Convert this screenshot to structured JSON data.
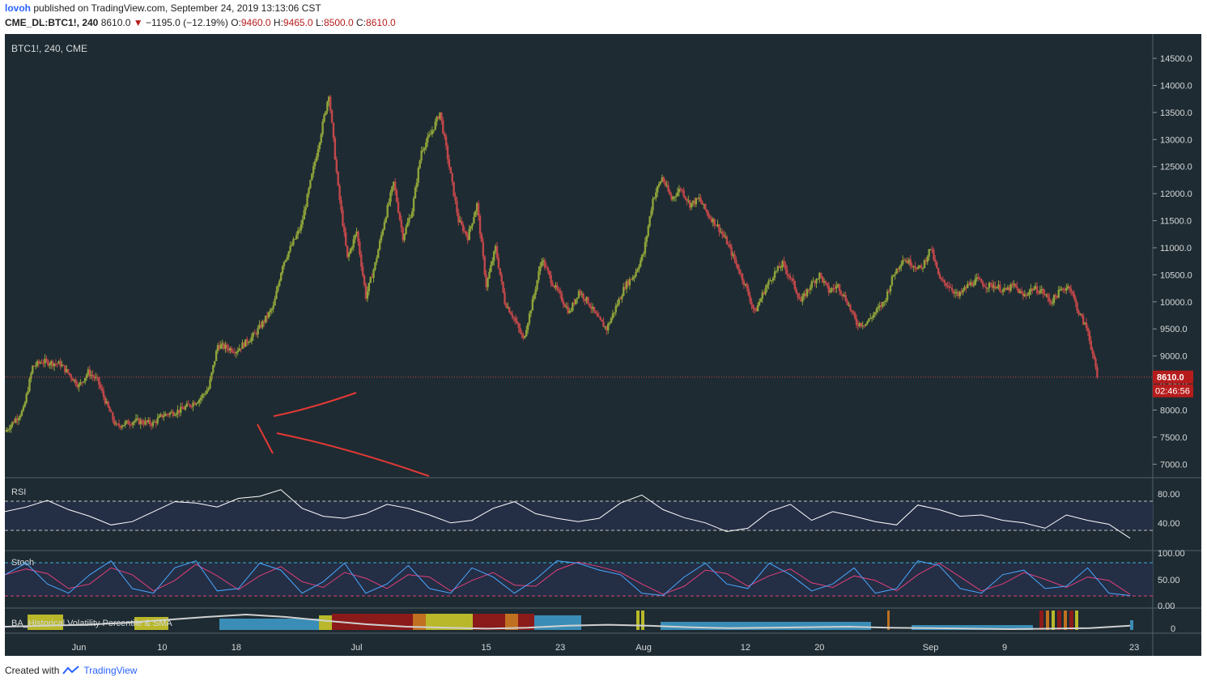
{
  "header": {
    "author": "lovoh",
    "published_text": "published on TradingView.com, September 24, 2019 13:13:06 CST",
    "symbol": "CME_DL:BTC1!, 240",
    "last": "8610.0",
    "change": "−1195.0 (−12.19%)",
    "open_label": "O:",
    "open": "9460.0",
    "high_label": "H:",
    "high": "9465.0",
    "low_label": "L:",
    "low": "8500.0",
    "close_label": "C:",
    "close": "8610.0"
  },
  "footer": {
    "created_with": "Created with",
    "brand": "TradingView"
  },
  "colors": {
    "background": "#1e2b32",
    "up_candle": "#8fa33a",
    "down_candle": "#c0474a",
    "price_tag": "#b71c1c",
    "rsi_line": "#ffffff",
    "stoch_k": "#4aa8ff",
    "stoch_d": "#e0407a",
    "annotation": "#e53935"
  },
  "chart_data": {
    "type": "candlestick",
    "title": "BTC1!, 240, CME",
    "price_axis": [
      "14500.0",
      "14000.0",
      "13500.0",
      "13000.0",
      "12500.0",
      "12000.0",
      "11500.0",
      "11000.0",
      "10500.0",
      "10000.0",
      "9500.0",
      "9000.0",
      "8500.0",
      "8000.0",
      "7500.0",
      "7000.0"
    ],
    "price_range": [
      6750,
      14950
    ],
    "last_price_label": "8610.0",
    "countdown_label": "02:46:56",
    "x_tick_labels": [
      "Jun",
      "10",
      "18",
      "Jul",
      "15",
      "23",
      "Aug",
      "12",
      "20",
      "Sep",
      "9",
      "23"
    ],
    "day_range": [
      -7,
      117
    ],
    "x_ticks_day": [
      1,
      10,
      18,
      31,
      45,
      53,
      62,
      73,
      81,
      93,
      101,
      115
    ],
    "closes_by_day": [
      [
        -7,
        7600
      ],
      [
        -5,
        8000
      ],
      [
        -4,
        8800
      ],
      [
        -3,
        8900
      ],
      [
        -1,
        8850
      ],
      [
        0,
        8650
      ],
      [
        1,
        8450
      ],
      [
        2,
        8700
      ],
      [
        3,
        8550
      ],
      [
        4,
        8100
      ],
      [
        5,
        7700
      ],
      [
        7,
        7800
      ],
      [
        9,
        7750
      ],
      [
        10,
        7900
      ],
      [
        12,
        8000
      ],
      [
        14,
        8200
      ],
      [
        15,
        8400
      ],
      [
        16,
        9200
      ],
      [
        18,
        9100
      ],
      [
        20,
        9400
      ],
      [
        22,
        9900
      ],
      [
        23,
        10700
      ],
      [
        25,
        11400
      ],
      [
        27,
        13000
      ],
      [
        28,
        13850
      ],
      [
        29,
        12100
      ],
      [
        30,
        10800
      ],
      [
        31,
        11300
      ],
      [
        32,
        10100
      ],
      [
        33,
        10700
      ],
      [
        34,
        11500
      ],
      [
        35,
        12200
      ],
      [
        36,
        11200
      ],
      [
        37,
        11700
      ],
      [
        38,
        12800
      ],
      [
        39,
        13100
      ],
      [
        40,
        13500
      ],
      [
        41,
        12500
      ],
      [
        42,
        11500
      ],
      [
        43,
        11200
      ],
      [
        44,
        11800
      ],
      [
        45,
        10300
      ],
      [
        46,
        11000
      ],
      [
        47,
        10000
      ],
      [
        48,
        9700
      ],
      [
        49,
        9300
      ],
      [
        50,
        10000
      ],
      [
        51,
        10800
      ],
      [
        52,
        10400
      ],
      [
        53,
        10100
      ],
      [
        54,
        9800
      ],
      [
        55,
        10200
      ],
      [
        56,
        10000
      ],
      [
        57,
        9700
      ],
      [
        58,
        9500
      ],
      [
        59,
        9900
      ],
      [
        60,
        10300
      ],
      [
        61,
        10500
      ],
      [
        62,
        10900
      ],
      [
        63,
        11900
      ],
      [
        64,
        12300
      ],
      [
        65,
        11900
      ],
      [
        66,
        12100
      ],
      [
        67,
        11800
      ],
      [
        68,
        11900
      ],
      [
        69,
        11600
      ],
      [
        70,
        11400
      ],
      [
        71,
        11100
      ],
      [
        72,
        10700
      ],
      [
        73,
        10300
      ],
      [
        74,
        9800
      ],
      [
        75,
        10200
      ],
      [
        76,
        10500
      ],
      [
        77,
        10700
      ],
      [
        78,
        10400
      ],
      [
        79,
        10000
      ],
      [
        80,
        10300
      ],
      [
        81,
        10500
      ],
      [
        82,
        10200
      ],
      [
        83,
        10300
      ],
      [
        84,
        10000
      ],
      [
        85,
        9600
      ],
      [
        86,
        9600
      ],
      [
        87,
        9800
      ],
      [
        88,
        10000
      ],
      [
        89,
        10500
      ],
      [
        90,
        10800
      ],
      [
        91,
        10700
      ],
      [
        92,
        10600
      ],
      [
        93,
        11000
      ],
      [
        94,
        10400
      ],
      [
        95,
        10300
      ],
      [
        96,
        10100
      ],
      [
        97,
        10300
      ],
      [
        98,
        10400
      ],
      [
        99,
        10300
      ],
      [
        100,
        10300
      ],
      [
        101,
        10200
      ],
      [
        102,
        10300
      ],
      [
        103,
        10100
      ],
      [
        104,
        10250
      ],
      [
        105,
        10200
      ],
      [
        106,
        10000
      ],
      [
        107,
        10200
      ],
      [
        108,
        10300
      ],
      [
        109,
        9800
      ],
      [
        110,
        9460
      ],
      [
        111,
        8610
      ]
    ],
    "series": [
      {
        "name": "RSI",
        "y_axis": [
          "80.00",
          "40.00"
        ],
        "y_range": [
          0,
          100
        ],
        "bands": [
          70,
          30
        ],
        "values": [
          55,
          62,
          72,
          58,
          48,
          35,
          40,
          55,
          70,
          68,
          62,
          75,
          78,
          88,
          60,
          48,
          45,
          52,
          66,
          60,
          50,
          38,
          42,
          60,
          70,
          52,
          45,
          40,
          45,
          68,
          80,
          58,
          46,
          38,
          25,
          30,
          55,
          66,
          42,
          55,
          48,
          40,
          35,
          65,
          58,
          48,
          50,
          42,
          38,
          30,
          50,
          42,
          36,
          15
        ]
      },
      {
        "name": "Stoch",
        "y_axis": [
          "100.00",
          "50.00",
          "0.00"
        ],
        "y_range": [
          0,
          100
        ],
        "bands": [
          80,
          20
        ],
        "values": [
          60,
          85,
          40,
          20,
          60,
          90,
          30,
          20,
          75,
          90,
          25,
          30,
          85,
          70,
          20,
          45,
          85,
          20,
          40,
          80,
          30,
          20,
          75,
          55,
          20,
          50,
          90,
          85,
          70,
          60,
          20,
          15,
          55,
          85,
          40,
          30,
          85,
          60,
          25,
          40,
          75,
          20,
          30,
          90,
          80,
          30,
          20,
          60,
          70,
          30,
          35,
          75,
          20,
          15
        ]
      },
      {
        "name": "BA_Historical Volatility Percentile & SMA",
        "y_axis": [
          "0"
        ],
        "values": [
          10,
          12,
          14,
          18,
          24,
          30,
          35,
          30,
          22,
          15,
          10,
          8,
          6,
          8,
          12,
          14,
          12,
          9,
          7,
          8,
          9,
          10,
          8,
          7,
          6,
          5,
          6,
          7,
          12
        ]
      }
    ]
  },
  "indicator_labels": {
    "rsi": "RSI",
    "stoch": "Stoch",
    "hv": "BA_Historical Volatility Percentile & SMA"
  }
}
